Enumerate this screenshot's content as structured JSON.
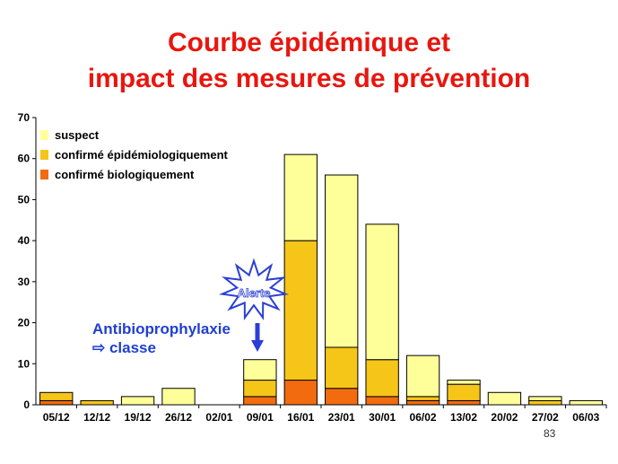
{
  "title_line1": "Courbe épidémique et",
  "title_line2": "impact des mesures de prévention",
  "page_number": "83",
  "chart_data": {
    "type": "bar",
    "stacked": true,
    "categories": [
      "05/12",
      "12/12",
      "19/12",
      "26/12",
      "02/01",
      "09/01",
      "16/01",
      "23/01",
      "30/01",
      "06/02",
      "13/02",
      "20/02",
      "27/02",
      "06/03"
    ],
    "series": [
      {
        "name": "confirmé biologiquement",
        "color": "#f26b0f",
        "values": [
          1,
          0,
          0,
          0,
          0,
          2,
          6,
          4,
          2,
          1,
          1,
          0,
          0,
          0
        ]
      },
      {
        "name": "confirmé épidémiologiquement",
        "color": "#f5c518",
        "values": [
          2,
          1,
          0,
          0,
          0,
          4,
          34,
          10,
          9,
          1,
          4,
          0,
          1,
          0
        ]
      },
      {
        "name": "suspect",
        "color": "#ffff99",
        "values": [
          0,
          0,
          2,
          4,
          0,
          5,
          21,
          42,
          33,
          10,
          1,
          3,
          1,
          1
        ]
      }
    ],
    "ylim": [
      0,
      70
    ],
    "yticks": [
      0,
      10,
      20,
      30,
      40,
      50,
      60,
      70
    ],
    "legend_order": [
      "suspect",
      "confirmé épidémiologiquement",
      "confirmé biologiquement"
    ],
    "legend_position": "top-left",
    "annotations": {
      "alert_label": "Alerte",
      "antibio_line1": "Antibioprophylaxie",
      "antibio_line2": "⇨ classe",
      "antibio_color": "#1f3fd1"
    }
  }
}
